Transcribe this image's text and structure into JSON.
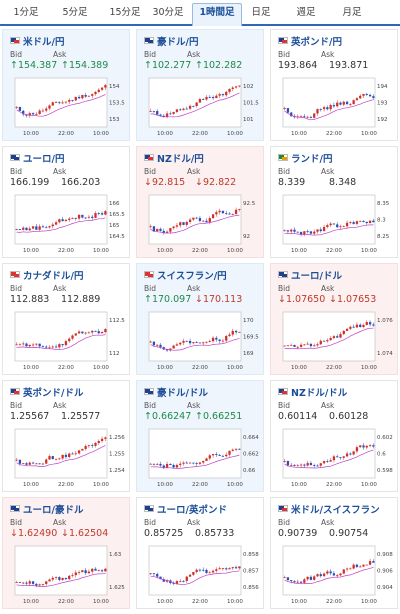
{
  "tabs": [
    {
      "label": "1分足",
      "active": false
    },
    {
      "label": "5分足",
      "active": false
    },
    {
      "label": "15分足",
      "active": false
    },
    {
      "label": "30分足",
      "active": false
    },
    {
      "label": "1時間足",
      "active": true
    },
    {
      "label": "日足",
      "active": false
    },
    {
      "label": "週足",
      "active": false
    },
    {
      "label": "月足",
      "active": false
    }
  ],
  "labels": {
    "bid": "Bid",
    "ask": "Ask"
  },
  "colors": {
    "up": "#1f8a4a",
    "down": "#c0392b",
    "candle_up": "#d0302a",
    "candle_down": "#2a4fb8",
    "ma": "#c040c8",
    "accent": "#2f69b5"
  },
  "cards": [
    {
      "name": "米ドル/円",
      "flag": "us-flag",
      "trend": "up",
      "bid": "↑154.387",
      "ask": "↑154.389",
      "bid_trend": "up",
      "ask_trend": "up",
      "ticks": [
        "154",
        "153.5",
        "153"
      ],
      "times": [
        "10:00",
        "22:00",
        "10:00"
      ]
    },
    {
      "name": "豪ドル/円",
      "flag": "au-flag",
      "trend": "up",
      "bid": "↑102.277",
      "ask": "↑102.282",
      "bid_trend": "up",
      "ask_trend": "up",
      "ticks": [
        "102",
        "101.5",
        "101"
      ],
      "times": [
        "10:00",
        "22:00",
        "10:00"
      ]
    },
    {
      "name": "英ポンド/円",
      "flag": "gb-flag",
      "trend": "none",
      "bid": "193.864",
      "ask": "193.871",
      "bid_trend": "flat",
      "ask_trend": "flat",
      "ticks": [
        "194",
        "193",
        "192"
      ],
      "times": [
        "10:00",
        "22:00",
        "10:00"
      ]
    },
    {
      "name": "ユーロ/円",
      "flag": "eu-flag",
      "trend": "none",
      "bid": "166.199",
      "ask": "166.203",
      "bid_trend": "flat",
      "ask_trend": "flat",
      "ticks": [
        "166",
        "165.5",
        "165",
        "164.5"
      ],
      "times": [
        "10:00",
        "22:00",
        "10:00"
      ]
    },
    {
      "name": "NZドル/円",
      "flag": "nz-flag",
      "trend": "down",
      "bid": "↓92.815",
      "ask": "↓92.822",
      "bid_trend": "down",
      "ask_trend": "down",
      "ticks": [
        "92.5",
        "92"
      ],
      "times": [
        "10:00",
        "22:00",
        "10:00"
      ]
    },
    {
      "name": "ランド/円",
      "flag": "za-flag",
      "trend": "none",
      "bid": "8.339",
      "ask": "8.348",
      "bid_trend": "flat",
      "ask_trend": "flat",
      "ticks": [
        "8.35",
        "8.3",
        "8.25"
      ],
      "times": [
        "10:00",
        "22:00",
        "10:00"
      ]
    },
    {
      "name": "カナダドル/円",
      "flag": "ca-flag",
      "trend": "none",
      "bid": "112.883",
      "ask": "112.889",
      "bid_trend": "flat",
      "ask_trend": "flat",
      "ticks": [
        "112.5",
        "112"
      ],
      "times": [
        "10:00",
        "22:00",
        "10:00"
      ]
    },
    {
      "name": "スイスフラン/円",
      "flag": "ch-flag",
      "trend": "up",
      "bid": "↑170.097",
      "ask": "↓170.113",
      "bid_trend": "up",
      "ask_trend": "down",
      "ticks": [
        "170",
        "169.5",
        "169"
      ],
      "times": [
        "10:00",
        "22:00",
        "10:00"
      ]
    },
    {
      "name": "ユーロ/ドル",
      "flag": "eu-flag",
      "trend": "down",
      "bid": "↓1.07650",
      "ask": "↓1.07653",
      "bid_trend": "down",
      "ask_trend": "down",
      "ticks": [
        "1.076",
        "1.074"
      ],
      "times": [
        "10:00",
        "22:00",
        "10:00"
      ]
    },
    {
      "name": "英ポンド/ドル",
      "flag": "gb-flag",
      "trend": "none",
      "bid": "1.25567",
      "ask": "1.25577",
      "bid_trend": "flat",
      "ask_trend": "flat",
      "ticks": [
        "1.256",
        "1.255",
        "1.254"
      ],
      "times": [
        "10:00",
        "22:00",
        "10:00"
      ]
    },
    {
      "name": "豪ドル/ドル",
      "flag": "au-flag",
      "trend": "up",
      "bid": "↑0.66247",
      "ask": "↑0.66251",
      "bid_trend": "up",
      "ask_trend": "up",
      "ticks": [
        "0.664",
        "0.662",
        "0.66"
      ],
      "times": [
        "10:00",
        "22:00",
        "10:00"
      ]
    },
    {
      "name": "NZドル/ドル",
      "flag": "nz-flag",
      "trend": "none",
      "bid": "0.60114",
      "ask": "0.60128",
      "bid_trend": "flat",
      "ask_trend": "flat",
      "ticks": [
        "0.602",
        "0.6",
        "0.598"
      ],
      "times": [
        "10:00",
        "22:00",
        "10:00"
      ]
    },
    {
      "name": "ユーロ/豪ドル",
      "flag": "eu-flag",
      "trend": "down",
      "bid": "↓1.62490",
      "ask": "↓1.62504",
      "bid_trend": "down",
      "ask_trend": "down",
      "ticks": [
        "1.63",
        "1.625"
      ],
      "times": [
        "10:00",
        "22:00",
        "10:00"
      ]
    },
    {
      "name": "ユーロ/英ポンド",
      "flag": "eu-flag",
      "trend": "none",
      "bid": "0.85725",
      "ask": "0.85733",
      "bid_trend": "flat",
      "ask_trend": "flat",
      "ticks": [
        "0.858",
        "0.857",
        "0.856"
      ],
      "times": [
        "10:00",
        "22:00",
        "10:00"
      ]
    },
    {
      "name": "米ドル/スイスフラン",
      "flag": "us-flag",
      "trend": "none",
      "bid": "0.90739",
      "ask": "0.90754",
      "bid_trend": "flat",
      "ask_trend": "flat",
      "ticks": [
        "0.908",
        "0.906",
        "0.904"
      ],
      "times": [
        "10:00",
        "22:00",
        "10:00"
      ]
    }
  ]
}
